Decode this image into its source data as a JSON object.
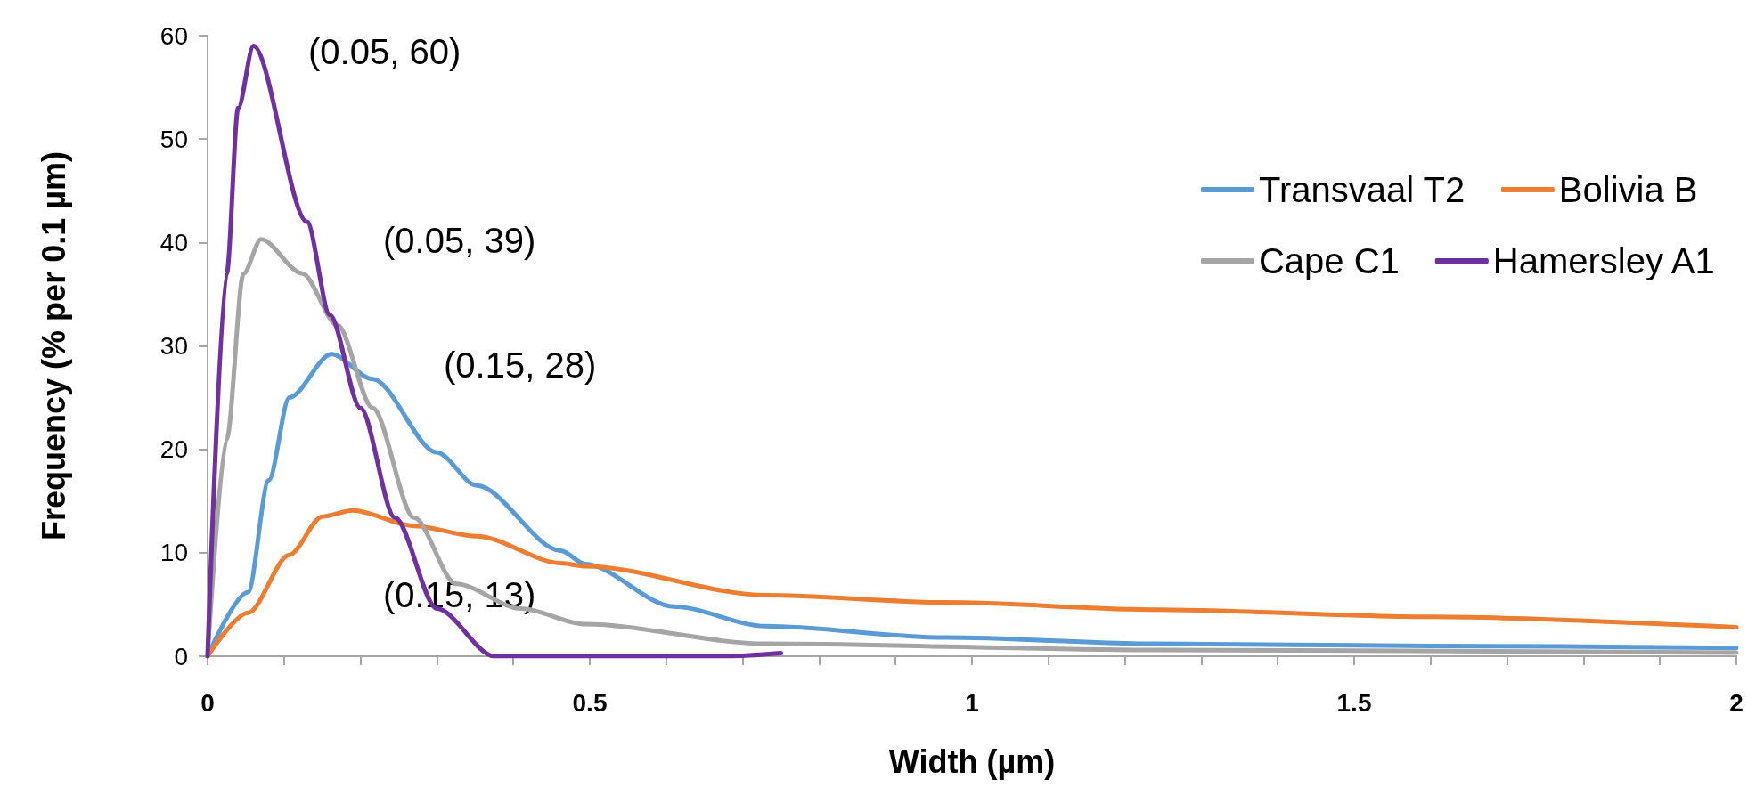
{
  "chart_data": {
    "type": "line",
    "xlabel": "Width (µm)",
    "ylabel": "Frequency (% per 0.1 µm)",
    "xlim": [
      0,
      2
    ],
    "xticks": [
      0,
      {
        "value": 0.1,
        "label": null
      },
      {
        "value": 0.2,
        "label": null
      },
      {
        "value": 0.3,
        "label": null
      },
      {
        "value": 0.4,
        "label": null
      },
      0.5,
      {
        "value": 0.6,
        "label": null
      },
      {
        "value": 0.7,
        "label": null
      },
      {
        "value": 0.8,
        "label": null
      },
      {
        "value": 0.9,
        "label": null
      },
      1,
      {
        "value": 1.1,
        "label": null
      },
      {
        "value": 1.2,
        "label": null
      },
      {
        "value": 1.3,
        "label": null
      },
      {
        "value": 1.4,
        "label": null
      },
      1.5,
      {
        "value": 1.6,
        "label": null
      },
      {
        "value": 1.7,
        "label": null
      },
      {
        "value": 1.8,
        "label": null
      },
      {
        "value": 1.9,
        "label": null
      },
      2
    ],
    "ylim": [
      0,
      60
    ],
    "yticks": [
      0,
      10,
      20,
      30,
      40,
      50,
      60
    ],
    "grid": false,
    "legend": "top right",
    "marker": "none",
    "line_style": "solid",
    "annotations": [
      "(0.05, 60)",
      "(0.05, 39)",
      "(0.15, 28)",
      "(0.15, 13)"
    ],
    "series": [
      {
        "name": "Transvaal T2",
        "color": "#5b9bd5",
        "x": [
          0,
          0.053,
          0.08,
          0.107,
          0.162,
          0.216,
          0.3,
          0.352,
          0.462,
          0.494,
          0.61,
          0.73,
          0.965,
          1.24,
          1.6,
          2
        ],
        "values": [
          0,
          6.2,
          17,
          25,
          29.2,
          26.8,
          19.7,
          16.5,
          10.2,
          8.9,
          4.8,
          2.9,
          1.8,
          1.2,
          1,
          0.8
        ]
      },
      {
        "name": "Bolivia B",
        "color": "#ed7d31",
        "x": [
          0,
          0.053,
          0.107,
          0.15,
          0.19,
          0.27,
          0.352,
          0.462,
          0.494,
          0.73,
          0.965,
          1.24,
          1.6,
          2
        ],
        "values": [
          0,
          4.2,
          9.8,
          13.5,
          14.1,
          12.6,
          11.6,
          9,
          8.7,
          5.9,
          5.2,
          4.5,
          3.8,
          2.8
        ]
      },
      {
        "name": "Cape C1",
        "color": "#a5a5a5",
        "x": [
          0,
          0.025,
          0.047,
          0.07,
          0.124,
          0.17,
          0.216,
          0.27,
          0.325,
          0.41,
          0.494,
          0.73,
          1.24,
          2
        ],
        "values": [
          0,
          21,
          37,
          40.3,
          37,
          32,
          24,
          13.4,
          7,
          4.6,
          3.1,
          1.2,
          0.6,
          0.35
        ]
      },
      {
        "name": "Hamersley A1",
        "color": "#7030a0",
        "x": [
          0,
          0.025,
          0.04,
          0.06,
          0.13,
          0.16,
          0.2,
          0.245,
          0.3,
          0.375,
          0.5,
          0.68,
          0.75
        ],
        "values": [
          0,
          37,
          53,
          59,
          42,
          33,
          24,
          13.4,
          4.6,
          0,
          0,
          0,
          0.3
        ]
      }
    ]
  }
}
